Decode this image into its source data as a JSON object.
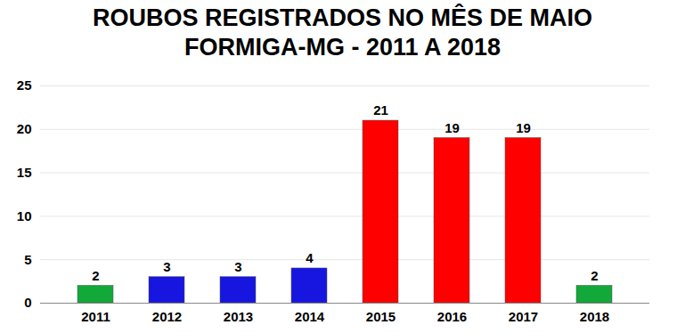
{
  "chart_data": {
    "type": "bar",
    "title": "ROUBOS REGISTRADOS NO MÊS DE MAIO",
    "subtitle": "FORMIGA-MG - 2011 A 2018",
    "categories": [
      "2011",
      "2012",
      "2013",
      "2014",
      "2015",
      "2016",
      "2017",
      "2018"
    ],
    "values": [
      2,
      3,
      3,
      4,
      21,
      19,
      19,
      2
    ],
    "colors": [
      "#12a83a",
      "#1616e0",
      "#1616e0",
      "#1616e0",
      "#ff0000",
      "#ff0000",
      "#ff0000",
      "#12a83a"
    ],
    "ylim": [
      0,
      25
    ],
    "yticks": [
      0,
      5,
      10,
      15,
      20,
      25
    ],
    "grid": true,
    "data_labels": true
  }
}
